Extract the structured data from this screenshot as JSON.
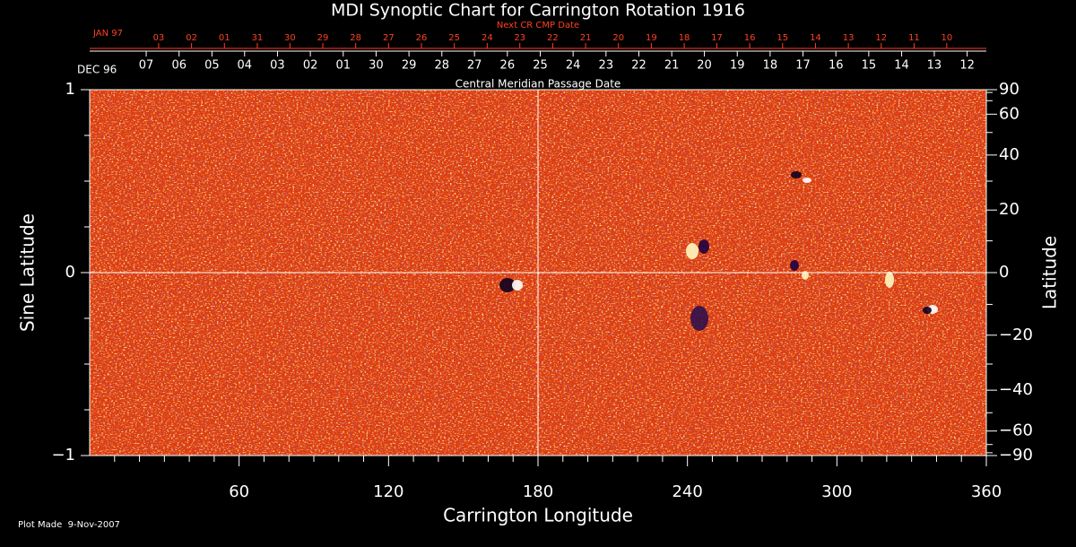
{
  "chart_data": {
    "type": "synoptic_map",
    "title": "MDI Synoptic Chart for Carrington Rotation 1916",
    "xlabel": "Carrington Longitude",
    "ylabel": "Sine Latitude",
    "y2label": "Latitude",
    "xlim": [
      0,
      360
    ],
    "xticks": [
      60,
      120,
      180,
      240,
      300,
      360
    ],
    "xminorticks": [
      10,
      20,
      30,
      40,
      50,
      70,
      80,
      90,
      100,
      110,
      130,
      140,
      150,
      160,
      170,
      190,
      200,
      210,
      220,
      230,
      250,
      260,
      270,
      280,
      290,
      310,
      320,
      330,
      340,
      350
    ],
    "ylim": [
      -1,
      1
    ],
    "yticks": [
      {
        "value": -1,
        "label": "−1"
      },
      0,
      1
    ],
    "yminorticks": [
      -0.75,
      -0.5,
      -0.25,
      0.25,
      0.5,
      0.75
    ],
    "y2scale": "sine",
    "y2lim": [
      -90,
      90
    ],
    "y2ticks": [
      {
        "value": -90,
        "label": "−90"
      },
      {
        "value": -60,
        "label": "−60"
      },
      {
        "value": -40,
        "label": "−40"
      },
      {
        "value": -20,
        "label": "−20"
      },
      0,
      20,
      40,
      60,
      90
    ],
    "y2minorticks": [
      -80,
      -70,
      -50,
      -30,
      -10,
      10,
      30,
      50,
      70,
      80
    ],
    "xlines": [
      180
    ],
    "ylines": [
      0
    ],
    "cmp_dates": {
      "title": "Central Meridian Passage Date",
      "label": "DEC 96",
      "color": "#ffffff",
      "ticks": [
        {
          "value": 22.7,
          "label": "07"
        },
        {
          "value": 35.9,
          "label": "06"
        },
        {
          "value": 49.1,
          "label": "05"
        },
        {
          "value": 62.2,
          "label": "04"
        },
        {
          "value": 75.4,
          "label": "03"
        },
        {
          "value": 88.6,
          "label": "02"
        },
        {
          "value": 101.8,
          "label": "01"
        },
        {
          "value": 115.0,
          "label": "30"
        },
        {
          "value": 128.2,
          "label": "29"
        },
        {
          "value": 141.4,
          "label": "28"
        },
        {
          "value": 154.5,
          "label": "27"
        },
        {
          "value": 167.7,
          "label": "26"
        },
        {
          "value": 180.9,
          "label": "25"
        },
        {
          "value": 194.1,
          "label": "24"
        },
        {
          "value": 207.3,
          "label": "23"
        },
        {
          "value": 220.5,
          "label": "22"
        },
        {
          "value": 233.7,
          "label": "21"
        },
        {
          "value": 246.8,
          "label": "20"
        },
        {
          "value": 260.0,
          "label": "19"
        },
        {
          "value": 273.2,
          "label": "18"
        },
        {
          "value": 286.4,
          "label": "17"
        },
        {
          "value": 299.6,
          "label": "16"
        },
        {
          "value": 312.8,
          "label": "15"
        },
        {
          "value": 326.0,
          "label": "14"
        },
        {
          "value": 339.1,
          "label": "13"
        },
        {
          "value": 352.3,
          "label": "12"
        }
      ]
    },
    "next_cr_dates": {
      "title": "Next CR CMP Date",
      "label": "JAN 97",
      "color": "#ff4020",
      "ticks": [
        {
          "value": 27.7,
          "label": "03"
        },
        {
          "value": 40.9,
          "label": "02"
        },
        {
          "value": 54.1,
          "label": "01"
        },
        {
          "value": 67.3,
          "label": "31"
        },
        {
          "value": 80.4,
          "label": "30"
        },
        {
          "value": 93.6,
          "label": "29"
        },
        {
          "value": 106.8,
          "label": "28"
        },
        {
          "value": 120.0,
          "label": "27"
        },
        {
          "value": 133.2,
          "label": "26"
        },
        {
          "value": 146.4,
          "label": "25"
        },
        {
          "value": 159.6,
          "label": "24"
        },
        {
          "value": 172.7,
          "label": "23"
        },
        {
          "value": 185.9,
          "label": "22"
        },
        {
          "value": 199.1,
          "label": "21"
        },
        {
          "value": 212.3,
          "label": "20"
        },
        {
          "value": 225.5,
          "label": "19"
        },
        {
          "value": 238.7,
          "label": "18"
        },
        {
          "value": 251.8,
          "label": "17"
        },
        {
          "value": 265.0,
          "label": "16"
        },
        {
          "value": 278.2,
          "label": "15"
        },
        {
          "value": 291.4,
          "label": "14"
        },
        {
          "value": 304.6,
          "label": "13"
        },
        {
          "value": 317.8,
          "label": "12"
        },
        {
          "value": 331.0,
          "label": "11"
        },
        {
          "value": 344.1,
          "label": "10"
        }
      ]
    },
    "footnote": "Plot Made  9-Nov-2007"
  }
}
